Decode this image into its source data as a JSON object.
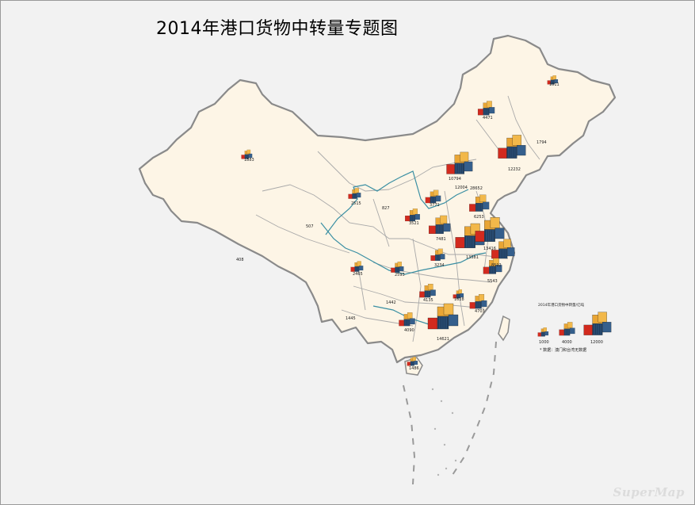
{
  "title": "2014年港口货物中转量专题图",
  "watermark": "SuperMap",
  "colors": {
    "land": "#fdf5e6",
    "border": "#8a8a8a",
    "river": "#3a8fa3",
    "container_blue": "#2a4d73",
    "container_red": "#d22a1e",
    "container_orange": "#e9a534",
    "background": "#f2f2f2"
  },
  "legend": {
    "title": "2014年港口货物中转量/亿吨",
    "items": [
      {
        "label": "1000",
        "value": 1000
      },
      {
        "label": "4000",
        "value": 4000
      },
      {
        "label": "12000",
        "value": 12000
      }
    ],
    "note": "* 数据：澳门和台湾无数据"
  },
  "labels": [
    {
      "text": "1011"
    },
    {
      "text": "4471"
    },
    {
      "text": "1794"
    },
    {
      "text": "1883"
    },
    {
      "text": "10794"
    },
    {
      "text": "12004"
    },
    {
      "text": "12232"
    },
    {
      "text": "28652"
    },
    {
      "text": "2515"
    },
    {
      "text": "827"
    },
    {
      "text": "3771"
    },
    {
      "text": "3521"
    },
    {
      "text": "6253"
    },
    {
      "text": "507"
    },
    {
      "text": "408"
    },
    {
      "text": "7481"
    },
    {
      "text": "13416"
    },
    {
      "text": "13581"
    },
    {
      "text": "8512"
    },
    {
      "text": "3234"
    },
    {
      "text": "2465"
    },
    {
      "text": "2593"
    },
    {
      "text": "5543"
    },
    {
      "text": "4135"
    },
    {
      "text": "1442"
    },
    {
      "text": "1628"
    },
    {
      "text": "4703"
    },
    {
      "text": "1445"
    },
    {
      "text": "4090"
    },
    {
      "text": "14621"
    },
    {
      "text": "1486"
    }
  ],
  "symbols": [
    {
      "value": 1011
    },
    {
      "value": 4471
    },
    {
      "value": 1883
    },
    {
      "value": 10794
    },
    {
      "value": 12232
    },
    {
      "value": 2515
    },
    {
      "value": 3771
    },
    {
      "value": 3521
    },
    {
      "value": 6253
    },
    {
      "value": 7481
    },
    {
      "value": 13581
    },
    {
      "value": 13416
    },
    {
      "value": 8512
    },
    {
      "value": 3234
    },
    {
      "value": 2465
    },
    {
      "value": 2593
    },
    {
      "value": 5543
    },
    {
      "value": 4135
    },
    {
      "value": 1628
    },
    {
      "value": 4703
    },
    {
      "value": 4090
    },
    {
      "value": 14621
    },
    {
      "value": 1486
    }
  ]
}
